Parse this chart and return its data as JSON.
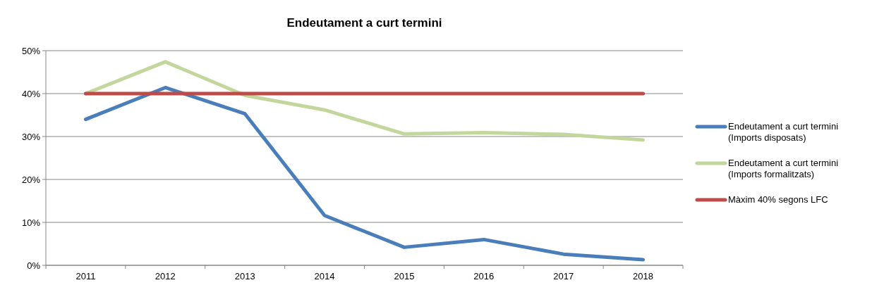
{
  "chart_data": {
    "type": "line",
    "title": "Endeutament a curt termini",
    "categories": [
      "2011",
      "2012",
      "2013",
      "2014",
      "2015",
      "2016",
      "2017",
      "2018"
    ],
    "series": [
      {
        "name": "Endeutament a curt termini (Imports disposats)",
        "color": "#4a7ebb",
        "values": [
          34.0,
          41.4,
          35.3,
          11.6,
          4.2,
          6.0,
          2.6,
          1.3
        ]
      },
      {
        "name": "Endeutament a curt termini (Imports formalitzats)",
        "color": "#c3d69b",
        "values": [
          40.0,
          47.4,
          39.6,
          36.2,
          30.6,
          30.9,
          30.5,
          29.2
        ]
      },
      {
        "name": "Màxim 40% segons LFC",
        "color": "#be4b48",
        "values": [
          40,
          40,
          40,
          40,
          40,
          40,
          40,
          40
        ]
      }
    ],
    "ylim": [
      0,
      50
    ],
    "yticks": [
      {
        "value": 0,
        "label": "0%"
      },
      {
        "value": 10,
        "label": "10%"
      },
      {
        "value": 20,
        "label": "20%"
      },
      {
        "value": 30,
        "label": "30%"
      },
      {
        "value": 40,
        "label": "40%"
      },
      {
        "value": 50,
        "label": "50%"
      }
    ],
    "grid": "y",
    "legend": "right",
    "marker": "none",
    "line_style": "solid"
  }
}
